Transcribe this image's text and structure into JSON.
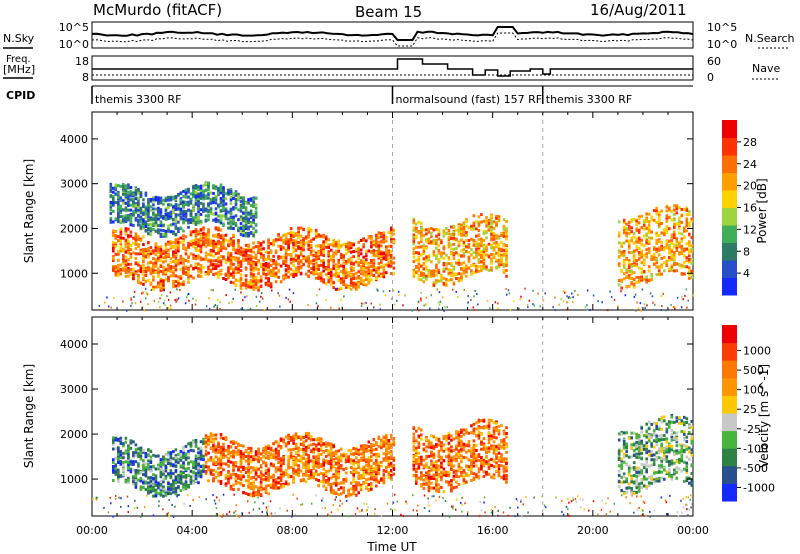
{
  "header": {
    "station": "McMurdo (fitACF)",
    "beam": "Beam 15",
    "date": "16/Aug/2011"
  },
  "ancillary": {
    "nsky_label": "N.Sky",
    "nsearch_label": "N.Search",
    "freq_label": "Freq.",
    "freq_unit": "[MHz]",
    "nave_label": "Nave",
    "cpid_label": "CPID",
    "noise_ticks": [
      "10^5",
      "10^0"
    ],
    "freq_ticks": [
      "18",
      "8"
    ],
    "nave_ticks": [
      "60",
      "0"
    ],
    "cpid_segments": [
      {
        "start_hour": 0,
        "end_hour": 12,
        "label": "themis 3300 RF"
      },
      {
        "start_hour": 12,
        "end_hour": 18,
        "label": "normalsound (fast) 157 RF"
      },
      {
        "start_hour": 18,
        "end_hour": 24,
        "label": "themis 3300 RF"
      }
    ]
  },
  "chart_data": [
    {
      "type": "heatmap",
      "parameter": "Power",
      "ylabel": "Slant Range [km]",
      "xlim": [
        0,
        24
      ],
      "ylim": [
        180,
        4600
      ],
      "yticks": [
        1000,
        2000,
        3000,
        4000
      ],
      "colorbar": {
        "label": "Power [dB]",
        "ticks": [
          "4",
          "8",
          "12",
          "16",
          "20",
          "24",
          "28"
        ],
        "colors": [
          "#1428ff",
          "#284ec8",
          "#2e7a64",
          "#3fae58",
          "#9ed43c",
          "#ffd200",
          "#ffa000",
          "#ff6e00",
          "#ff3200",
          "#f00000"
        ]
      },
      "regions": [
        {
          "t0": 0.8,
          "t1": 12.0,
          "r0": 800,
          "r1": 1900,
          "level": 7
        },
        {
          "t0": 0.7,
          "t1": 6.5,
          "r0": 2000,
          "r1": 2900,
          "level": 2
        },
        {
          "t0": 12.8,
          "t1": 16.5,
          "r0": 900,
          "r1": 2200,
          "level": 6
        },
        {
          "t0": 21.0,
          "t1": 24.0,
          "r0": 850,
          "r1": 2400,
          "level": 6
        }
      ]
    },
    {
      "type": "heatmap",
      "parameter": "Velocity",
      "ylabel": "Slant Range [km]",
      "xlabel": "Time UT",
      "xlim": [
        0,
        24
      ],
      "ylim": [
        180,
        4600
      ],
      "xticks": [
        "00:00",
        "04:00",
        "08:00",
        "12:00",
        "16:00",
        "20:00",
        "00:00"
      ],
      "yticks": [
        1000,
        2000,
        3000,
        4000
      ],
      "colorbar": {
        "label": "Velocity [m s^-1]",
        "ticks": [
          "1000",
          "500",
          "100",
          "25",
          "-25",
          "-100",
          "-500",
          "-1000"
        ],
        "colors": [
          "#1428ff",
          "#28508c",
          "#2e8246",
          "#46b43c",
          "#c8c8c8",
          "#ffc800",
          "#ff9600",
          "#ff7800",
          "#ff3c00",
          "#f00000"
        ]
      },
      "regions": [
        {
          "t0": 0.8,
          "t1": 4.5,
          "r0": 800,
          "r1": 1800,
          "level": 2
        },
        {
          "t0": 4.5,
          "t1": 12.0,
          "r0": 800,
          "r1": 1900,
          "level": 7
        },
        {
          "t0": 12.8,
          "t1": 16.5,
          "r0": 900,
          "r1": 2200,
          "level": 7
        },
        {
          "t0": 21.0,
          "t1": 24.0,
          "r0": 850,
          "r1": 2300,
          "level": 3
        }
      ]
    }
  ]
}
